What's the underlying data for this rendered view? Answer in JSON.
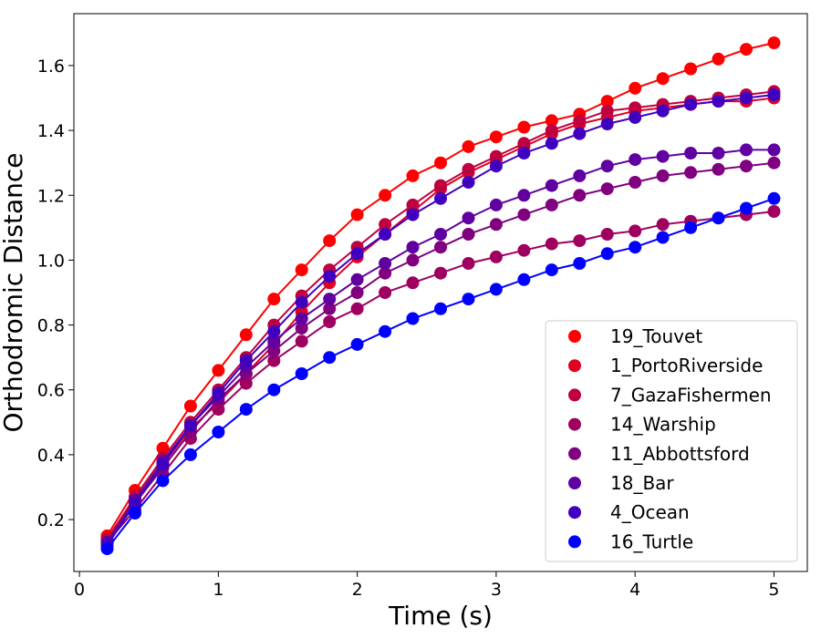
{
  "chart_data": {
    "type": "line",
    "title": "",
    "xlabel": "Time (s)",
    "ylabel": "Orthodromic Distance",
    "xlim": [
      -0.04,
      5.24
    ],
    "ylim": [
      0.04,
      1.76
    ],
    "xticks": [
      "0",
      "1",
      "2",
      "3",
      "4",
      "5"
    ],
    "yticks": [
      "0.2",
      "0.4",
      "0.6",
      "0.8",
      "1.0",
      "1.2",
      "1.4",
      "1.6"
    ],
    "grid": false,
    "legend_position": "lower-right",
    "x": [
      0.2,
      0.4,
      0.6,
      0.8,
      1.0,
      1.2,
      1.4,
      1.6,
      1.8,
      2.0,
      2.2,
      2.4,
      2.6,
      2.8,
      3.0,
      3.2,
      3.4,
      3.6,
      3.8,
      4.0,
      4.2,
      4.4,
      4.6,
      4.8,
      5.0
    ],
    "series": [
      {
        "name": "19_Touvet",
        "color": "#ff0000",
        "values": [
          0.15,
          0.29,
          0.42,
          0.55,
          0.66,
          0.77,
          0.88,
          0.97,
          1.06,
          1.14,
          1.2,
          1.26,
          1.3,
          1.35,
          1.38,
          1.41,
          1.43,
          1.45,
          1.49,
          1.53,
          1.56,
          1.59,
          1.62,
          1.65,
          1.67
        ]
      },
      {
        "name": "1_PortoRiverside",
        "color": "#df0022",
        "values": [
          0.14,
          0.26,
          0.37,
          0.48,
          0.56,
          0.65,
          0.74,
          0.84,
          0.93,
          1.01,
          1.08,
          1.15,
          1.22,
          1.27,
          1.31,
          1.35,
          1.39,
          1.42,
          1.44,
          1.46,
          1.47,
          1.48,
          1.49,
          1.49,
          1.5
        ]
      },
      {
        "name": "7_GazaFishermen",
        "color": "#bf0040",
        "values": [
          0.14,
          0.27,
          0.39,
          0.5,
          0.6,
          0.7,
          0.8,
          0.89,
          0.97,
          1.04,
          1.11,
          1.17,
          1.23,
          1.28,
          1.32,
          1.36,
          1.4,
          1.43,
          1.46,
          1.47,
          1.48,
          1.49,
          1.5,
          1.51,
          1.52
        ]
      },
      {
        "name": "14_Warship",
        "color": "#9f0060",
        "values": [
          0.13,
          0.23,
          0.34,
          0.45,
          0.54,
          0.62,
          0.69,
          0.75,
          0.81,
          0.85,
          0.9,
          0.93,
          0.96,
          0.99,
          1.01,
          1.03,
          1.05,
          1.06,
          1.08,
          1.09,
          1.11,
          1.12,
          1.13,
          1.14,
          1.15
        ]
      },
      {
        "name": "11_Abbottsford",
        "color": "#800080",
        "values": [
          0.13,
          0.25,
          0.36,
          0.47,
          0.57,
          0.65,
          0.72,
          0.79,
          0.85,
          0.9,
          0.96,
          1.0,
          1.04,
          1.08,
          1.11,
          1.14,
          1.17,
          1.2,
          1.22,
          1.24,
          1.26,
          1.27,
          1.28,
          1.29,
          1.3
        ]
      },
      {
        "name": "18_Bar",
        "color": "#6000a0",
        "values": [
          0.13,
          0.26,
          0.38,
          0.49,
          0.58,
          0.67,
          0.75,
          0.82,
          0.88,
          0.94,
          0.99,
          1.04,
          1.08,
          1.13,
          1.17,
          1.2,
          1.23,
          1.26,
          1.29,
          1.31,
          1.32,
          1.33,
          1.33,
          1.34,
          1.34
        ]
      },
      {
        "name": "4_Ocean",
        "color": "#4000c0",
        "values": [
          0.12,
          0.25,
          0.37,
          0.49,
          0.59,
          0.69,
          0.78,
          0.87,
          0.95,
          1.02,
          1.08,
          1.14,
          1.19,
          1.24,
          1.29,
          1.33,
          1.36,
          1.39,
          1.42,
          1.44,
          1.46,
          1.48,
          1.49,
          1.5,
          1.51
        ]
      },
      {
        "name": "16_Turtle",
        "color": "#0000ff",
        "values": [
          0.11,
          0.22,
          0.32,
          0.4,
          0.47,
          0.54,
          0.6,
          0.65,
          0.7,
          0.74,
          0.78,
          0.82,
          0.85,
          0.88,
          0.91,
          0.94,
          0.97,
          0.99,
          1.02,
          1.04,
          1.07,
          1.1,
          1.13,
          1.16,
          1.19
        ]
      }
    ]
  }
}
